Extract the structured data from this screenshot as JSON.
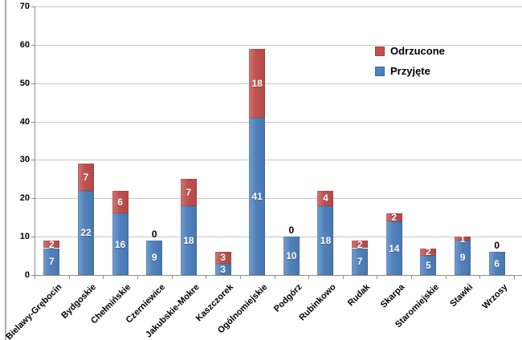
{
  "chart_data": {
    "type": "bar",
    "stacked": true,
    "title": "",
    "xlabel": "",
    "ylabel": "",
    "categories": [
      "Bielawy-Grębocin",
      "Bydgoskie",
      "Chełmińskie",
      "Czerniewice",
      "Jakubskie-Mokre",
      "Kaszczorek",
      "Ogólnomiejskie",
      "Podgórz",
      "Rubinkowo",
      "Rudak",
      "Skarpa",
      "Staromiejskie",
      "Stawki",
      "Wrzosy"
    ],
    "series": [
      {
        "name": "Przyjęte",
        "color": "#4f81bd",
        "values": [
          7,
          22,
          16,
          9,
          18,
          3,
          41,
          10,
          18,
          7,
          14,
          5,
          9,
          6
        ]
      },
      {
        "name": "Odrzucone",
        "color": "#c0504d",
        "values": [
          2,
          7,
          6,
          0,
          7,
          3,
          18,
          0,
          4,
          2,
          2,
          2,
          1,
          0
        ]
      }
    ],
    "legend": [
      {
        "label": "Odrzucone",
        "color": "#c0504d"
      },
      {
        "label": "Przyjęte",
        "color": "#4f81bd"
      }
    ],
    "legend_position": "inside-top-right",
    "ylim": [
      0,
      70
    ],
    "yticks": [
      0,
      10,
      20,
      30,
      40,
      50,
      60,
      70
    ],
    "grid": true,
    "data_labels": true
  },
  "colors": {
    "background": "#ffffff",
    "gridline": "#c6c6c6",
    "axis": "#8e8e8e",
    "frame": "#ababab",
    "data_label": "#ffffff",
    "zero_label": "#000000"
  }
}
